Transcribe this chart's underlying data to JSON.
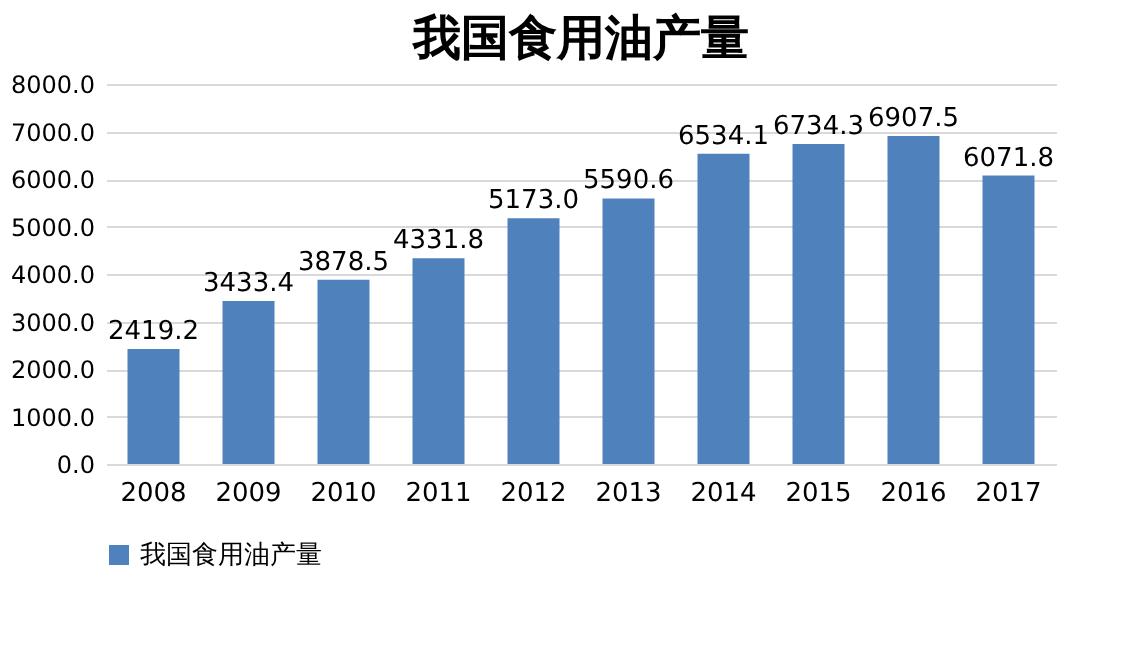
{
  "chart_data": {
    "type": "bar",
    "title": "我国食用油产量",
    "categories": [
      "2008",
      "2009",
      "2010",
      "2011",
      "2012",
      "2013",
      "2014",
      "2015",
      "2016",
      "2017"
    ],
    "series": [
      {
        "name": "我国食用油产量",
        "color": "#4f81bd",
        "values": [
          2419.2,
          3433.4,
          3878.5,
          4331.8,
          5173.0,
          5590.6,
          6534.1,
          6734.3,
          6907.5,
          6071.8
        ],
        "value_labels": [
          "2419.2",
          "3433.4",
          "3878.5",
          "4331.8",
          "5173.0",
          "5590.6",
          "6534.1",
          "6734.3",
          "6907.5",
          "6071.8"
        ]
      }
    ],
    "ylim": [
      0,
      8000
    ],
    "yticks": [
      {
        "value": 0,
        "label": "0.0"
      },
      {
        "value": 1000,
        "label": "1000.0"
      },
      {
        "value": 2000,
        "label": "2000.0"
      },
      {
        "value": 3000,
        "label": "3000.0"
      },
      {
        "value": 4000,
        "label": "4000.0"
      },
      {
        "value": 5000,
        "label": "5000.0"
      },
      {
        "value": 6000,
        "label": "6000.0"
      },
      {
        "value": 7000,
        "label": "7000.0"
      },
      {
        "value": 8000,
        "label": "8000.0"
      }
    ],
    "grid": "y",
    "legend": "bottom"
  }
}
